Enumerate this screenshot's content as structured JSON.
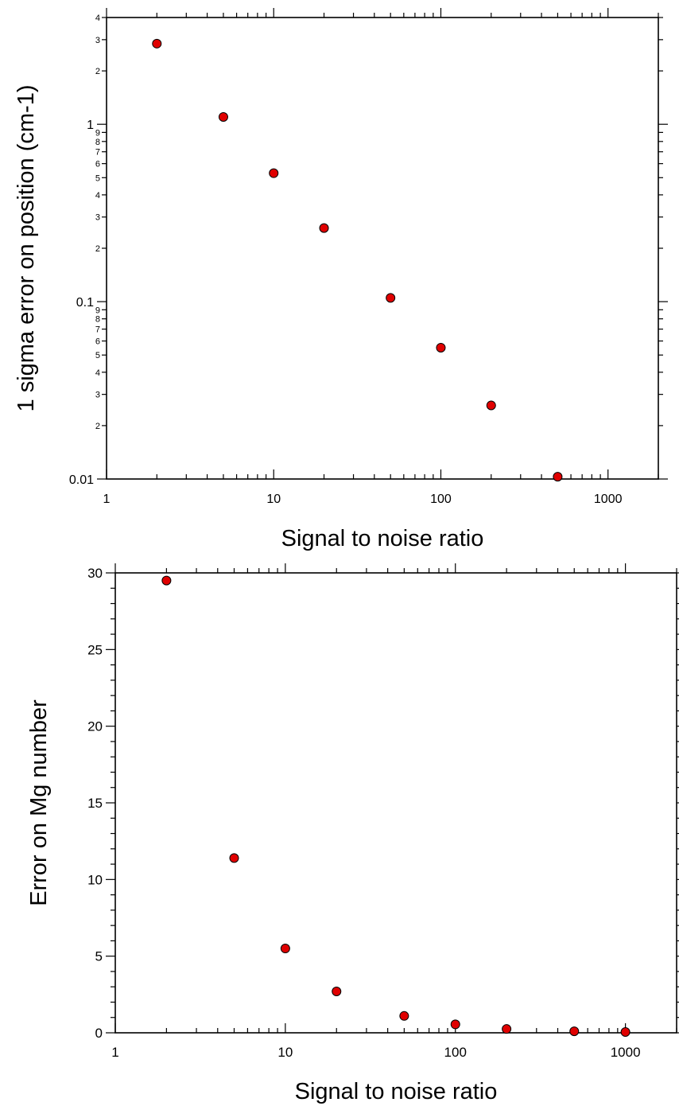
{
  "chart_data": [
    {
      "type": "scatter",
      "xscale": "log",
      "yscale": "log",
      "xlabel": "Signal to noise ratio",
      "ylabel": "1 sigma error on position (cm-1)",
      "xlim": [
        1,
        2000
      ],
      "ylim": [
        0.01,
        4
      ],
      "x_major_ticks": [
        {
          "value": 1,
          "label": "1"
        },
        {
          "value": 10,
          "label": "10"
        },
        {
          "value": 100,
          "label": "100"
        },
        {
          "value": 1000,
          "label": "1000"
        }
      ],
      "y_major_ticks": [
        {
          "value": 0.01,
          "label": "0.01"
        },
        {
          "value": 0.1,
          "label": "0.1"
        },
        {
          "value": 1,
          "label": "1"
        }
      ],
      "y_minor_labels": [
        "2",
        "3",
        "4",
        "5",
        "6",
        "7",
        "8"
      ],
      "marker_color": "#e00000",
      "grid": false,
      "x": [
        2,
        5,
        10,
        20,
        50,
        100,
        200,
        500
      ],
      "y": [
        2.85,
        1.1,
        0.53,
        0.26,
        0.105,
        0.055,
        0.026,
        0.0103
      ]
    },
    {
      "type": "scatter",
      "xscale": "log",
      "yscale": "linear",
      "xlabel": "Signal to noise ratio",
      "ylabel": "Error on Mg number",
      "xlim": [
        1,
        2000
      ],
      "ylim": [
        0,
        30
      ],
      "x_major_ticks": [
        {
          "value": 1,
          "label": "1"
        },
        {
          "value": 10,
          "label": "10"
        },
        {
          "value": 100,
          "label": "100"
        },
        {
          "value": 1000,
          "label": "1000"
        }
      ],
      "y_major_ticks": [
        {
          "value": 0,
          "label": "0"
        },
        {
          "value": 5,
          "label": "5"
        },
        {
          "value": 10,
          "label": "10"
        },
        {
          "value": 15,
          "label": "15"
        },
        {
          "value": 20,
          "label": "20"
        },
        {
          "value": 25,
          "label": "25"
        },
        {
          "value": 30,
          "label": "30"
        }
      ],
      "y_minor_step": 1,
      "marker_color": "#e00000",
      "grid": false,
      "x": [
        2,
        5,
        10,
        20,
        50,
        100,
        200,
        500,
        1000
      ],
      "y": [
        29.5,
        11.4,
        5.5,
        2.7,
        1.1,
        0.55,
        0.25,
        0.1,
        0.05
      ]
    }
  ]
}
